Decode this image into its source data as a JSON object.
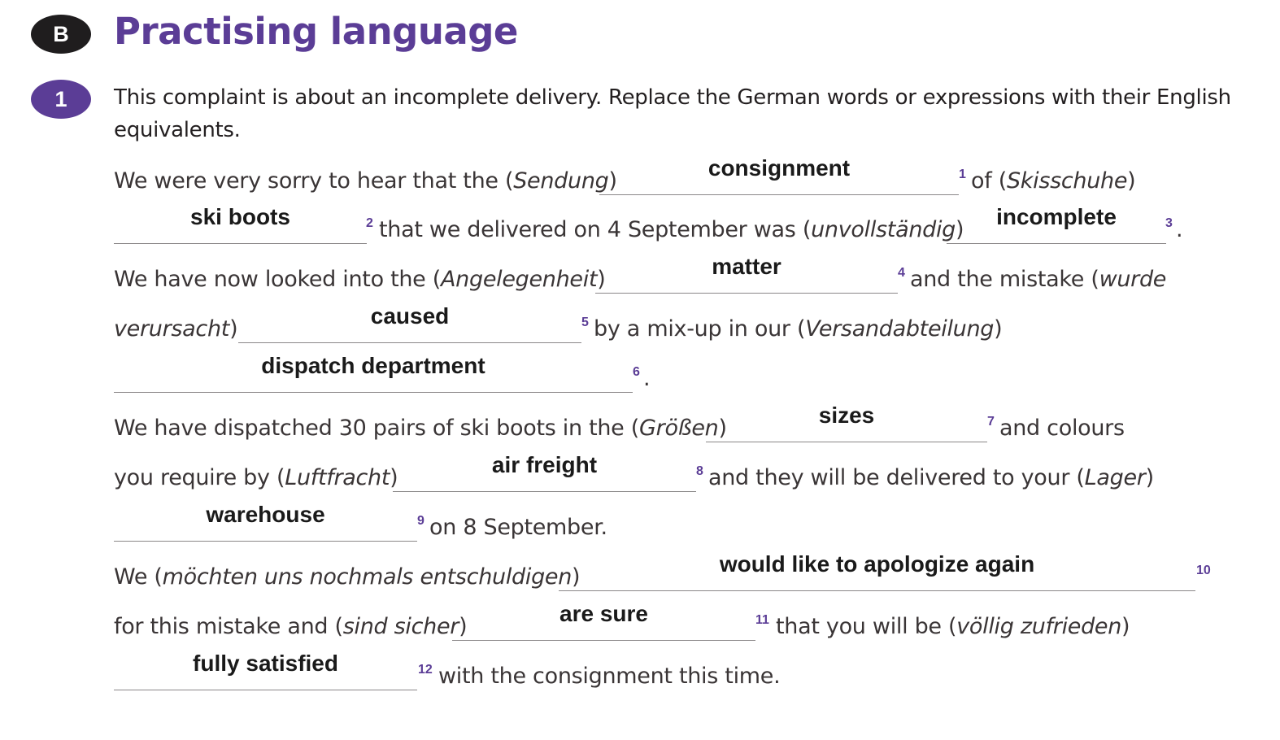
{
  "section": {
    "badge": "B",
    "title": "Practising language"
  },
  "exercise": {
    "number": "1",
    "instruction": "This complaint is about an incomplete delivery. Replace the German words or expressions with their English equivalents."
  },
  "text": {
    "l1_a": "We were very sorry to hear that the (",
    "l1_a_it": "Sendung",
    "l1_a_end": ")",
    "l1_b": "of (",
    "l1_b_it": "Skisschuhe",
    "l1_b_end": ")",
    "l2_a": "that we delivered on 4 September was (",
    "l2_a_it": "unvollständig",
    "l2_a_end": ")",
    "l2_b": ".",
    "l3_a": "We have now looked into the (",
    "l3_a_it": "Angelegenheit",
    "l3_a_end": ")",
    "l3_b": "and the mistake (",
    "l3_b_it": "wurde",
    "l4_a_it": "verursacht",
    "l4_a_end": ")",
    "l4_b": "by a mix-up in our (",
    "l4_b_it": "Versandabteilung",
    "l4_b_end": ")",
    "l5_a": ".",
    "l6_a": "We have dispatched 30 pairs of ski boots in the (",
    "l6_a_it": "Größen",
    "l6_a_end": ")",
    "l6_b": "and colours",
    "l7_a": "you require by (",
    "l7_a_it": "Luftfracht",
    "l7_a_end": ")",
    "l7_b": "and they will be delivered to your (",
    "l7_b_it": "Lager",
    "l7_b_end": ")",
    "l8_a": "on 8 September.",
    "l9_a": "We (",
    "l9_a_it": "möchten uns nochmals entschuldigen",
    "l9_a_end": ")",
    "l10_a": "for this mistake and (",
    "l10_a_it": "sind sicher",
    "l10_a_end": ")",
    "l10_b": "that you will be (",
    "l10_b_it": "völlig zufrieden",
    "l10_b_end": ")",
    "l11_a": "with the consignment this time."
  },
  "answers": [
    {
      "n": "1",
      "text": "consignment"
    },
    {
      "n": "2",
      "text": "ski boots"
    },
    {
      "n": "3",
      "text": "incomplete"
    },
    {
      "n": "4",
      "text": "matter"
    },
    {
      "n": "5",
      "text": "caused"
    },
    {
      "n": "6",
      "text": "dispatch department"
    },
    {
      "n": "7",
      "text": "sizes"
    },
    {
      "n": "8",
      "text": "air freight"
    },
    {
      "n": "9",
      "text": "warehouse"
    },
    {
      "n": "10",
      "text": "would like to apologize again"
    },
    {
      "n": "11",
      "text": "are sure"
    },
    {
      "n": "12",
      "text": "fully satisfied"
    }
  ],
  "colors": {
    "accent": "#5b3d96",
    "badge_dark": "#1f1d1e",
    "text": "#231f20"
  }
}
